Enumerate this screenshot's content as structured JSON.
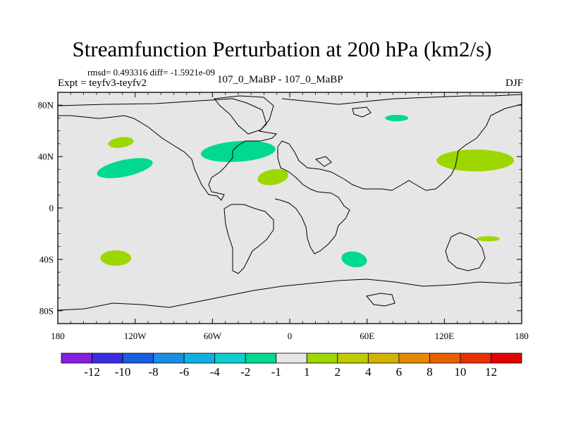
{
  "chart_data": {
    "type": "contour-map",
    "title": "Streamfunction Perturbation at 200 hPa (km2/s)",
    "subtitle": "rmsd= 0.493316 diff= -1.5921e-09",
    "left_label": "Expt = teyfv3-teyfv2",
    "center_label": "107_0_MaBP - 107_0_MaBP",
    "right_label": "DJF",
    "xlim": [
      -180,
      180
    ],
    "ylim": [
      -90,
      90
    ],
    "x_ticks": [
      {
        "value": -180,
        "label": "180"
      },
      {
        "value": -120,
        "label": "120W"
      },
      {
        "value": -60,
        "label": "60W"
      },
      {
        "value": 0,
        "label": "0"
      },
      {
        "value": 60,
        "label": "60E"
      },
      {
        "value": 120,
        "label": "120E"
      },
      {
        "value": 180,
        "label": "180"
      }
    ],
    "y_ticks": [
      {
        "value": 80,
        "label": "80N"
      },
      {
        "value": 40,
        "label": "40N"
      },
      {
        "value": 0,
        "label": "0"
      },
      {
        "value": -40,
        "label": "40S"
      },
      {
        "value": -80,
        "label": "80S"
      }
    ],
    "background_bin": "-1 to 1",
    "anomalies": [
      {
        "lon": -131,
        "lat": 51,
        "rlon": 10,
        "rlat": 4,
        "rot": -8,
        "level": "1 to 2",
        "color": "#9ed600"
      },
      {
        "lon": -128,
        "lat": 31,
        "rlon": 22,
        "rlat": 6.5,
        "rot": -12,
        "level": "-2 to -1",
        "color": "#00d98f"
      },
      {
        "lon": -40,
        "lat": 44,
        "rlon": 29,
        "rlat": 8,
        "rot": -4,
        "level": "-2 to -1",
        "color": "#00d98f"
      },
      {
        "lon": -13,
        "lat": 24,
        "rlon": 12,
        "rlat": 6,
        "rot": -10,
        "level": "1 to 2",
        "color": "#9ed600"
      },
      {
        "lon": 83,
        "lat": 70,
        "rlon": 9,
        "rlat": 2.5,
        "rot": 0,
        "level": "-2 to -1",
        "color": "#00d98f"
      },
      {
        "lon": 144,
        "lat": 37,
        "rlon": 30,
        "rlat": 8.5,
        "rot": 0,
        "level": "1 to 2",
        "color": "#9ed600"
      },
      {
        "lon": -135,
        "lat": -39,
        "rlon": 12,
        "rlat": 6,
        "rot": 0,
        "level": "1 to 2",
        "color": "#9ed600"
      },
      {
        "lon": 50,
        "lat": -40,
        "rlon": 10,
        "rlat": 6,
        "rot": 10,
        "level": "-2 to -1",
        "color": "#00d98f"
      },
      {
        "lon": 154,
        "lat": -24,
        "rlon": 9,
        "rlat": 2,
        "rot": 0,
        "level": "1 to 2",
        "color": "#9ed600"
      }
    ],
    "colorbar": {
      "colors": [
        "#8a1ee0",
        "#3a2ee0",
        "#1a5ee0",
        "#1a8ee0",
        "#10b0e0",
        "#10cdd0",
        "#00d98f",
        "#e6e6e6",
        "#9ed600",
        "#bfcc00",
        "#d6b000",
        "#e38a00",
        "#e86000",
        "#e83000",
        "#e30000"
      ],
      "labels": [
        "-12",
        "-10",
        "-8",
        "-6",
        "-4",
        "-2",
        "-1",
        "1",
        "2",
        "4",
        "6",
        "8",
        "10",
        "12"
      ]
    }
  }
}
